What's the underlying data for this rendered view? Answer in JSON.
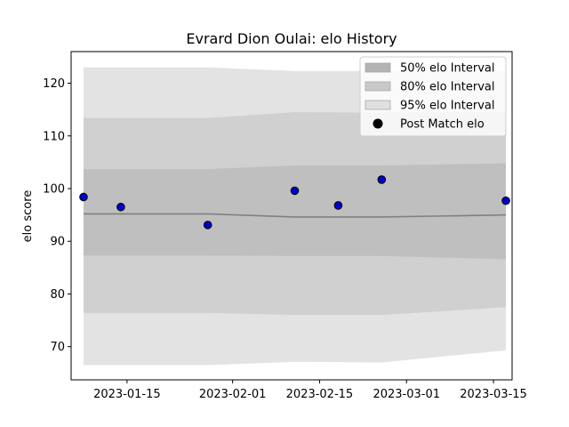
{
  "chart_data": {
    "type": "line",
    "title": "Evrard Dion Oulai: elo History",
    "xlabel": "",
    "ylabel": "elo score",
    "x_axis": {
      "type": "date",
      "min": "2023-01-06",
      "max": "2023-03-18",
      "ticks": [
        "2023-01-15",
        "2023-02-01",
        "2023-02-15",
        "2023-03-01",
        "2023-03-15"
      ]
    },
    "y_axis": {
      "min": 63.7,
      "max": 126.0,
      "ticks": [
        "70",
        "80",
        "90",
        "100",
        "110",
        "120"
      ]
    },
    "grid": false,
    "legend_position": "top-right",
    "band_dates": [
      "2023-01-08",
      "2023-01-28",
      "2023-02-11",
      "2023-02-25",
      "2023-03-17"
    ],
    "bands": [
      {
        "name": "95% elo Interval",
        "color": "#e3e3e3",
        "lower": [
          66.5,
          66.5,
          67.1,
          67.0,
          69.3
        ],
        "upper": [
          123.0,
          123.0,
          122.3,
          122.3,
          122.3
        ]
      },
      {
        "name": "80% elo Interval",
        "color": "#d0d0d0",
        "lower": [
          76.4,
          76.4,
          76.0,
          76.0,
          77.5
        ],
        "upper": [
          113.4,
          113.4,
          114.5,
          114.4,
          114.5
        ]
      },
      {
        "name": "50% elo Interval",
        "color": "#bfbfbf",
        "lower": [
          87.3,
          87.3,
          87.2,
          87.2,
          86.6
        ],
        "upper": [
          103.7,
          103.7,
          104.4,
          104.4,
          104.8
        ]
      }
    ],
    "mean_line": {
      "color": "#808080",
      "values": [
        95.2,
        95.2,
        94.6,
        94.6,
        95.0
      ]
    },
    "points": {
      "name": "Post Match elo",
      "color": "#0000cc",
      "x": [
        "2023-01-08",
        "2023-01-14",
        "2023-01-28",
        "2023-02-11",
        "2023-02-18",
        "2023-02-25",
        "2023-03-17"
      ],
      "y": [
        98.4,
        96.5,
        93.1,
        99.6,
        96.8,
        101.7,
        97.7
      ]
    },
    "legend": [
      {
        "label": "50% elo Interval",
        "kind": "patch",
        "color": "#b3b3b3"
      },
      {
        "label": "80% elo Interval",
        "kind": "patch",
        "color": "#c9c9c9"
      },
      {
        "label": "95% elo Interval",
        "kind": "patch",
        "color": "#e0e0e0"
      },
      {
        "label": "Post Match elo",
        "kind": "marker",
        "color": "#000000"
      }
    ]
  }
}
